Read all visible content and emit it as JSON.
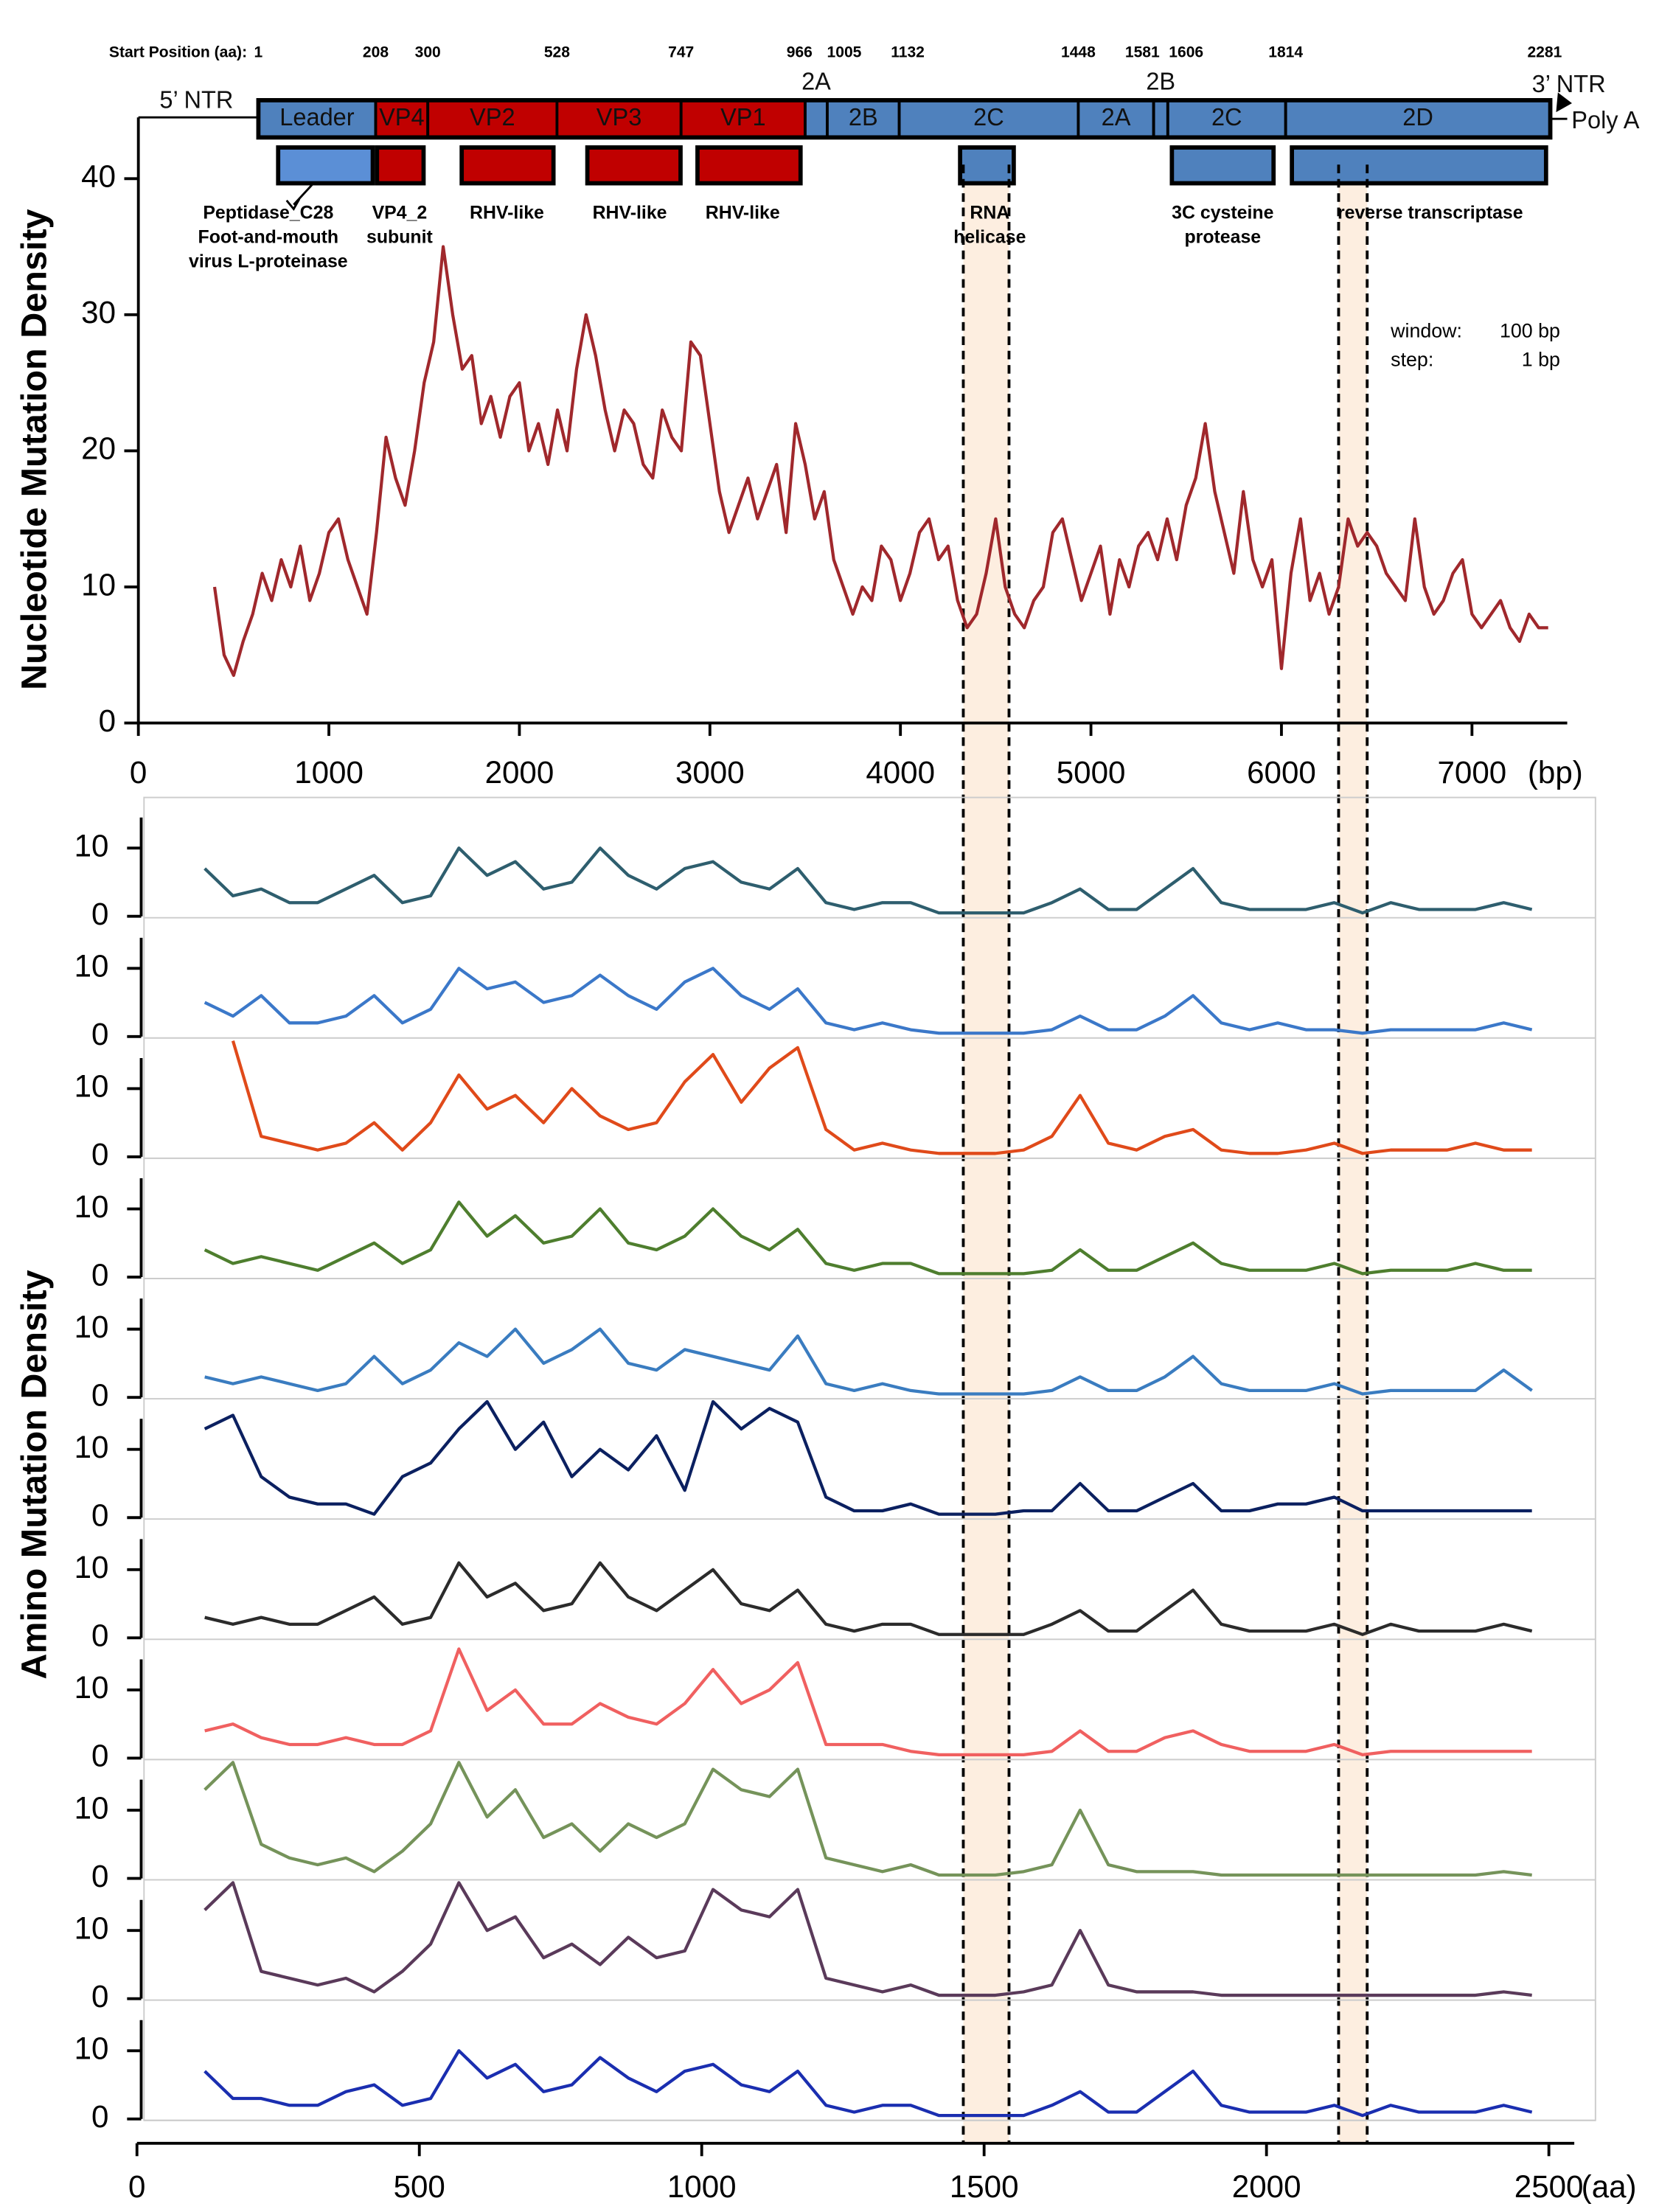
{
  "genome_map": {
    "start_label": "Start Position (aa):",
    "starts": [
      1,
      208,
      300,
      528,
      747,
      966,
      1005,
      1132,
      1448,
      1581,
      1606,
      1814,
      2281
    ],
    "segments": [
      "Leader",
      "VP4",
      "VP2",
      "VP3",
      "VP1",
      "2A",
      "2B",
      "2C",
      "2A",
      "2B",
      "2C",
      "2D"
    ],
    "segment_colors": [
      "#4f81bd",
      "#c00000",
      "#c00000",
      "#c00000",
      "#c00000",
      "#4f81bd",
      "#4f81bd",
      "#4f81bd",
      "#4f81bd",
      "#4f81bd",
      "#4f81bd",
      "#4f81bd"
    ],
    "ntr5": "5’ NTR",
    "ntr3": "3’ NTR",
    "poly_a": "Poly A",
    "domains": [
      {
        "label": [
          "Peptidase_C28",
          "Foot-and-mouth",
          "virus L-proteinase"
        ],
        "color": "#5b8fd6"
      },
      {
        "label": [
          "VP4_2",
          "subunit"
        ],
        "color": "#c00000"
      },
      {
        "label": [
          "RHV-like"
        ],
        "color": "#c00000"
      },
      {
        "label": [
          "RHV-like"
        ],
        "color": "#c00000"
      },
      {
        "label": [
          "RHV-like"
        ],
        "color": "#c00000"
      },
      {
        "label": [
          "RNA",
          "helicase"
        ],
        "color": "#4f81bd"
      },
      {
        "label": [
          "3C cysteine",
          "protease"
        ],
        "color": "#4f81bd"
      },
      {
        "label": [
          "reverse transcriptase"
        ],
        "color": "#4f81bd"
      }
    ]
  },
  "chart_data": [
    {
      "type": "line",
      "ylabel": "Nucleotide Mutation Density",
      "xunit": "(bp)",
      "annotations": [
        {
          "label": "window:",
          "value": "100 bp"
        },
        {
          "label": "step:",
          "value": "1 bp"
        }
      ],
      "xlim": [
        0,
        7500
      ],
      "xticks": [
        0,
        1000,
        2000,
        3000,
        4000,
        5000,
        6000,
        7000
      ],
      "ylim": [
        0,
        44.5
      ],
      "yticks": [
        0,
        10,
        20,
        30,
        40
      ],
      "highlights": [
        [
          4330,
          4570
        ],
        [
          6300,
          6450
        ]
      ],
      "highlight_color": "#fdeee0",
      "x": [
        400,
        450,
        500,
        550,
        600,
        650,
        700,
        750,
        800,
        850,
        900,
        950,
        1000,
        1050,
        1100,
        1150,
        1200,
        1250,
        1300,
        1350,
        1400,
        1450,
        1500,
        1550,
        1600,
        1650,
        1700,
        1750,
        1800,
        1850,
        1900,
        1950,
        2000,
        2050,
        2100,
        2150,
        2200,
        2250,
        2300,
        2350,
        2400,
        2450,
        2500,
        2550,
        2600,
        2650,
        2700,
        2750,
        2800,
        2850,
        2900,
        2950,
        3000,
        3050,
        3100,
        3150,
        3200,
        3250,
        3300,
        3350,
        3400,
        3450,
        3500,
        3550,
        3600,
        3650,
        3700,
        3750,
        3800,
        3850,
        3900,
        3950,
        4000,
        4050,
        4100,
        4150,
        4200,
        4250,
        4300,
        4350,
        4400,
        4450,
        4500,
        4550,
        4600,
        4650,
        4700,
        4750,
        4800,
        4850,
        4900,
        4950,
        5000,
        5050,
        5100,
        5150,
        5200,
        5250,
        5300,
        5350,
        5400,
        5450,
        5500,
        5550,
        5600,
        5650,
        5700,
        5750,
        5800,
        5850,
        5900,
        5950,
        6000,
        6050,
        6100,
        6150,
        6200,
        6250,
        6300,
        6350,
        6400,
        6450,
        6500,
        6550,
        6600,
        6650,
        6700,
        6750,
        6800,
        6850,
        6900,
        6950,
        7000,
        7050,
        7100,
        7150,
        7200,
        7250,
        7300,
        7350,
        7400
      ],
      "series": [
        {
          "color": "#a0282c",
          "values": [
            10,
            5,
            3.5,
            6,
            8,
            11,
            9,
            12,
            10,
            13,
            9,
            11,
            14,
            15,
            12,
            10,
            8,
            14,
            21,
            18,
            16,
            20,
            25,
            28,
            35,
            30,
            26,
            27,
            22,
            24,
            21,
            24,
            25,
            20,
            22,
            19,
            23,
            20,
            26,
            30,
            27,
            23,
            20,
            23,
            22,
            19,
            18,
            23,
            21,
            20,
            28,
            27,
            22,
            17,
            14,
            16,
            18,
            15,
            17,
            19,
            14,
            22,
            19,
            15,
            17,
            12,
            10,
            8,
            10,
            9,
            13,
            12,
            9,
            11,
            14,
            15,
            12,
            13,
            9,
            7,
            8,
            11,
            15,
            10,
            8,
            7,
            9,
            10,
            14,
            15,
            12,
            9,
            11,
            13,
            8,
            12,
            10,
            13,
            14,
            12,
            15,
            12,
            16,
            18,
            22,
            17,
            14,
            11,
            17,
            12,
            10,
            12,
            4,
            11,
            15,
            9,
            11,
            8,
            10,
            15,
            13,
            14,
            13,
            11,
            10,
            9,
            15,
            10,
            8,
            9,
            11,
            12,
            8,
            7,
            8,
            9,
            7,
            6,
            8,
            7,
            7
          ]
        }
      ]
    },
    {
      "type": "panels",
      "ylabel": "Amino Mutation Density",
      "xunit": "(aa)",
      "xlim": [
        0,
        2545
      ],
      "xticks": [
        0,
        500,
        1000,
        1500,
        2000,
        2500
      ],
      "ylim": [
        0,
        17
      ],
      "yticks": [
        0,
        10
      ],
      "x": [
        120,
        170,
        220,
        270,
        320,
        370,
        420,
        470,
        520,
        570,
        620,
        670,
        720,
        770,
        820,
        870,
        920,
        970,
        1020,
        1070,
        1120,
        1170,
        1220,
        1270,
        1320,
        1370,
        1420,
        1470,
        1520,
        1570,
        1620,
        1670,
        1720,
        1770,
        1820,
        1870,
        1920,
        1970,
        2020,
        2070,
        2120,
        2170,
        2220,
        2270,
        2320,
        2370,
        2420,
        2470
      ],
      "series": [
        {
          "color": "#2e5e6e",
          "values": [
            7,
            3,
            4,
            2,
            2,
            4,
            6,
            2,
            3,
            10,
            6,
            8,
            4,
            5,
            10,
            6,
            4,
            7,
            8,
            5,
            4,
            7,
            2,
            1,
            2,
            2,
            0.5,
            0.5,
            0.5,
            0.5,
            2,
            4,
            1,
            1,
            4,
            7,
            2,
            1,
            1,
            1,
            2,
            0.5,
            2,
            1,
            1,
            1,
            2,
            1
          ]
        },
        {
          "color": "#3b78c9",
          "values": [
            5,
            3,
            6,
            2,
            2,
            3,
            6,
            2,
            4,
            10,
            7,
            8,
            5,
            6,
            9,
            6,
            4,
            8,
            10,
            6,
            4,
            7,
            2,
            1,
            2,
            1,
            0.5,
            0.5,
            0.5,
            0.5,
            1,
            3,
            1,
            1,
            3,
            6,
            2,
            1,
            2,
            1,
            1,
            0.5,
            1,
            1,
            1,
            1,
            2,
            1
          ]
        },
        {
          "color": "#e04a1a",
          "values": [
            null,
            17,
            3,
            2,
            1,
            2,
            5,
            1,
            5,
            12,
            7,
            9,
            5,
            10,
            6,
            4,
            5,
            11,
            15,
            8,
            13,
            16,
            4,
            1,
            2,
            1,
            0.5,
            0.5,
            0.5,
            1,
            3,
            9,
            2,
            1,
            3,
            4,
            1,
            0.5,
            0.5,
            1,
            2,
            0.5,
            1,
            1,
            1,
            2,
            1,
            1
          ]
        },
        {
          "color": "#4e7e2e",
          "values": [
            4,
            2,
            3,
            2,
            1,
            3,
            5,
            2,
            4,
            11,
            6,
            9,
            5,
            6,
            10,
            5,
            4,
            6,
            10,
            6,
            4,
            7,
            2,
            1,
            2,
            2,
            0.5,
            0.5,
            0.5,
            0.5,
            1,
            4,
            1,
            1,
            3,
            5,
            2,
            1,
            1,
            1,
            2,
            0.5,
            1,
            1,
            1,
            2,
            1,
            1
          ]
        },
        {
          "color": "#3a7cc0",
          "values": [
            3,
            2,
            3,
            2,
            1,
            2,
            6,
            2,
            4,
            8,
            6,
            10,
            5,
            7,
            10,
            5,
            4,
            7,
            6,
            5,
            4,
            9,
            2,
            1,
            2,
            1,
            0.5,
            0.5,
            0.5,
            0.5,
            1,
            3,
            1,
            1,
            3,
            6,
            2,
            1,
            1,
            1,
            2,
            0.5,
            1,
            1,
            1,
            1,
            4,
            1
          ]
        },
        {
          "color": "#0b2060",
          "values": [
            13,
            15,
            6,
            3,
            2,
            2,
            0.5,
            6,
            8,
            13,
            17,
            10,
            14,
            6,
            10,
            7,
            12,
            4,
            17,
            13,
            16,
            14,
            3,
            1,
            1,
            2,
            0.5,
            0.5,
            0.5,
            1,
            1,
            5,
            1,
            1,
            3,
            5,
            1,
            1,
            2,
            2,
            3,
            1,
            1,
            1,
            1,
            1,
            1,
            1
          ]
        },
        {
          "color": "#2b2b2b",
          "values": [
            3,
            2,
            3,
            2,
            2,
            4,
            6,
            2,
            3,
            11,
            6,
            8,
            4,
            5,
            11,
            6,
            4,
            7,
            10,
            5,
            4,
            7,
            2,
            1,
            2,
            2,
            0.5,
            0.5,
            0.5,
            0.5,
            2,
            4,
            1,
            1,
            4,
            7,
            2,
            1,
            1,
            1,
            2,
            0.5,
            2,
            1,
            1,
            1,
            2,
            1
          ]
        },
        {
          "color": "#f06060",
          "values": [
            4,
            5,
            3,
            2,
            2,
            3,
            2,
            2,
            4,
            16,
            7,
            10,
            5,
            5,
            8,
            6,
            5,
            8,
            13,
            8,
            10,
            14,
            2,
            2,
            2,
            1,
            0.5,
            0.5,
            0.5,
            0.5,
            1,
            4,
            1,
            1,
            3,
            4,
            2,
            1,
            1,
            1,
            2,
            0.5,
            1,
            1,
            1,
            1,
            1,
            1
          ]
        },
        {
          "color": "#75935a",
          "values": [
            13,
            17,
            5,
            3,
            2,
            3,
            1,
            4,
            8,
            17,
            9,
            13,
            6,
            8,
            4,
            8,
            6,
            8,
            16,
            13,
            12,
            16,
            3,
            2,
            1,
            2,
            0.5,
            0.5,
            0.5,
            1,
            2,
            10,
            2,
            1,
            1,
            1,
            0.5,
            0.5,
            0.5,
            0.5,
            0.5,
            0.5,
            0.5,
            0.5,
            0.5,
            0.5,
            1,
            0.5
          ]
        },
        {
          "color": "#5a3a5a",
          "values": [
            13,
            17,
            4,
            3,
            2,
            3,
            1,
            4,
            8,
            17,
            10,
            12,
            6,
            8,
            5,
            9,
            6,
            7,
            16,
            13,
            12,
            16,
            3,
            2,
            1,
            2,
            0.5,
            0.5,
            0.5,
            1,
            2,
            10,
            2,
            1,
            1,
            1,
            0.5,
            0.5,
            0.5,
            0.5,
            0.5,
            0.5,
            0.5,
            0.5,
            0.5,
            0.5,
            1,
            0.5
          ]
        },
        {
          "color": "#1a2eb0",
          "values": [
            7,
            3,
            3,
            2,
            2,
            4,
            5,
            2,
            3,
            10,
            6,
            8,
            4,
            5,
            9,
            6,
            4,
            7,
            8,
            5,
            4,
            7,
            2,
            1,
            2,
            2,
            0.5,
            0.5,
            0.5,
            0.5,
            2,
            4,
            1,
            1,
            4,
            7,
            2,
            1,
            1,
            1,
            2,
            0.5,
            2,
            1,
            1,
            1,
            2,
            1
          ]
        }
      ]
    }
  ]
}
